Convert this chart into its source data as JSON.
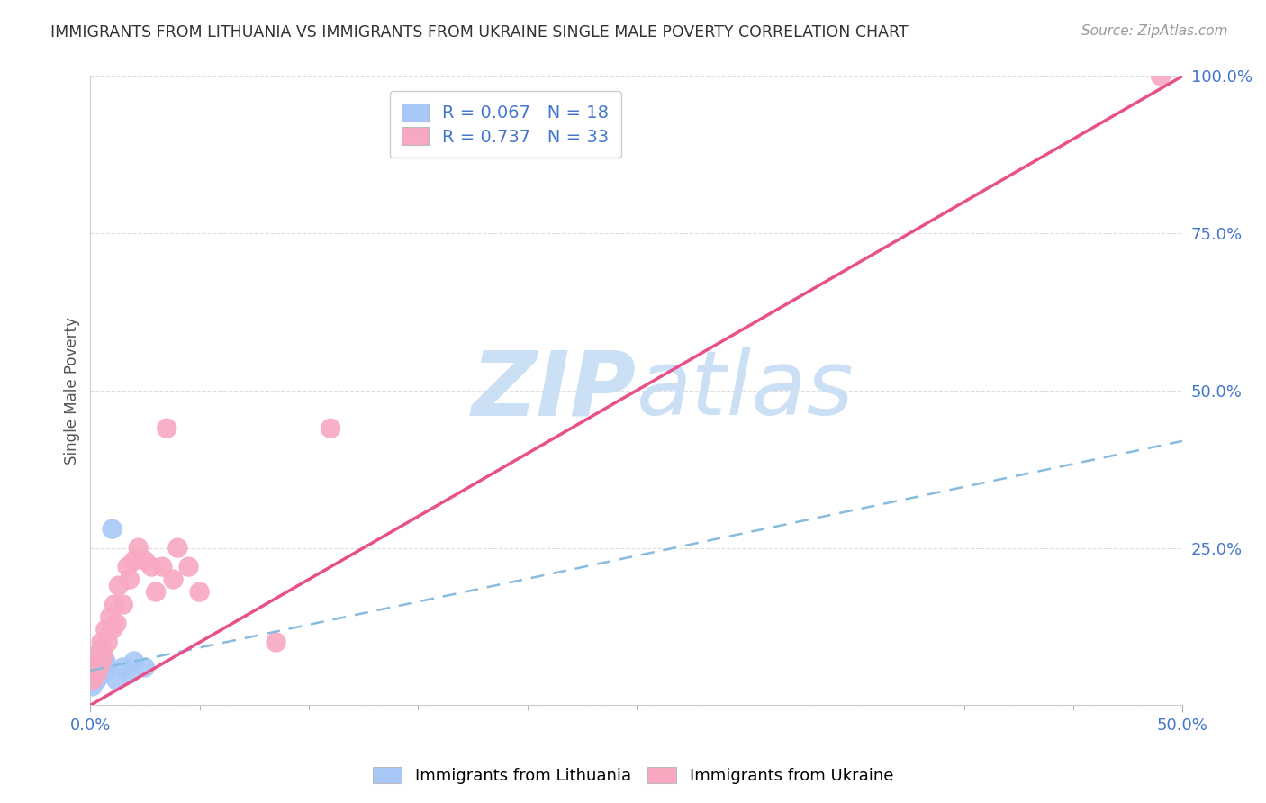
{
  "title": "IMMIGRANTS FROM LITHUANIA VS IMMIGRANTS FROM UKRAINE SINGLE MALE POVERTY CORRELATION CHART",
  "source": "Source: ZipAtlas.com",
  "ylabel": "Single Male Poverty",
  "xlim": [
    0.0,
    0.5
  ],
  "ylim": [
    0.0,
    1.0
  ],
  "xtick_major": [
    0.0,
    0.5
  ],
  "xtick_major_labels": [
    "0.0%",
    "50.0%"
  ],
  "yticks": [
    0.0,
    0.25,
    0.5,
    0.75,
    1.0
  ],
  "ytick_labels": [
    "",
    "25.0%",
    "50.0%",
    "75.0%",
    "100.0%"
  ],
  "lithuania_R": 0.067,
  "lithuania_N": 18,
  "ukraine_R": 0.737,
  "ukraine_N": 33,
  "lithuania_color": "#a8c8f8",
  "ukraine_color": "#f8a8c0",
  "lithuania_line_color": "#88bbdd",
  "ukraine_line_color": "#e8508a",
  "axis_color": "#4477cc",
  "grid_color": "#dddddd",
  "title_color": "#333333",
  "watermark_zip": "ZIP",
  "watermark_atlas": "atlas",
  "watermark_color": "#cce0f5",
  "legend_lithuania": "Immigrants from Lithuania",
  "legend_ukraine": "Immigrants from Ukraine",
  "lithuania_x": [
    0.001,
    0.002,
    0.002,
    0.003,
    0.003,
    0.004,
    0.004,
    0.005,
    0.005,
    0.006,
    0.007,
    0.008,
    0.01,
    0.012,
    0.015,
    0.018,
    0.02,
    0.025
  ],
  "lithuania_y": [
    0.03,
    0.05,
    0.06,
    0.04,
    0.07,
    0.05,
    0.08,
    0.06,
    0.09,
    0.05,
    0.07,
    0.06,
    0.28,
    0.04,
    0.06,
    0.05,
    0.07,
    0.06
  ],
  "ukraine_x": [
    0.001,
    0.002,
    0.002,
    0.003,
    0.003,
    0.004,
    0.005,
    0.005,
    0.006,
    0.007,
    0.008,
    0.009,
    0.01,
    0.011,
    0.012,
    0.013,
    0.015,
    0.017,
    0.018,
    0.02,
    0.022,
    0.025,
    0.028,
    0.03,
    0.033,
    0.035,
    0.038,
    0.04,
    0.045,
    0.05,
    0.085,
    0.11,
    0.49
  ],
  "ukraine_y": [
    0.04,
    0.05,
    0.06,
    0.05,
    0.08,
    0.06,
    0.07,
    0.1,
    0.08,
    0.12,
    0.1,
    0.14,
    0.12,
    0.16,
    0.13,
    0.19,
    0.16,
    0.22,
    0.2,
    0.23,
    0.25,
    0.23,
    0.22,
    0.18,
    0.22,
    0.44,
    0.2,
    0.25,
    0.22,
    0.18,
    0.1,
    0.44,
    1.0
  ],
  "lith_trend_x": [
    0.0,
    0.5
  ],
  "lith_trend_y": [
    0.055,
    0.42
  ],
  "ukr_trend_x": [
    0.0,
    0.5
  ],
  "ukr_trend_y": [
    0.0,
    1.0
  ]
}
